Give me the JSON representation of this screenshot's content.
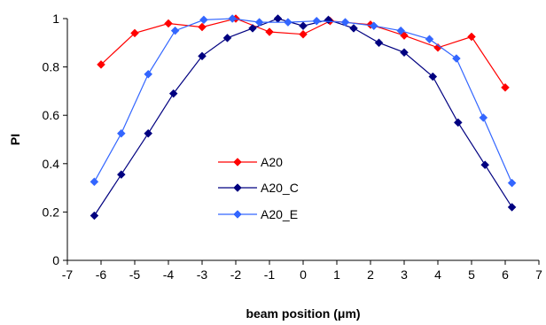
{
  "chart_data": {
    "type": "line",
    "xlabel": "beam position (μm)",
    "ylabel": "PI",
    "xlim": [
      -7,
      7
    ],
    "ylim": [
      0,
      1
    ],
    "x_ticks": [
      "-7",
      "-6",
      "-5",
      "-4",
      "-3",
      "-2",
      "-1",
      "0",
      "1",
      "2",
      "3",
      "4",
      "5",
      "6",
      "7"
    ],
    "y_ticks": [
      "0",
      "0.2",
      "0.4",
      "0.6",
      "0.8",
      "1"
    ],
    "grid": false,
    "legend_position": "center-left",
    "series": [
      {
        "name": "A20",
        "color": "#ff0000",
        "marker": "diamond",
        "points": [
          [
            -6,
            0.81
          ],
          [
            -5,
            0.94
          ],
          [
            -4,
            0.98
          ],
          [
            -3,
            0.965
          ],
          [
            -2,
            1.0
          ],
          [
            -1,
            0.945
          ],
          [
            0,
            0.935
          ],
          [
            0.8,
            0.99
          ],
          [
            2,
            0.975
          ],
          [
            3,
            0.93
          ],
          [
            4,
            0.88
          ],
          [
            5,
            0.925
          ],
          [
            6,
            0.715
          ]
        ]
      },
      {
        "name": "A20_C",
        "color": "#000080",
        "marker": "diamond",
        "points": [
          [
            -6.2,
            0.185
          ],
          [
            -5.4,
            0.355
          ],
          [
            -4.6,
            0.525
          ],
          [
            -3.85,
            0.69
          ],
          [
            -3.0,
            0.845
          ],
          [
            -2.25,
            0.92
          ],
          [
            -1.5,
            0.96
          ],
          [
            -0.75,
            1.0
          ],
          [
            0,
            0.97
          ],
          [
            0.75,
            0.995
          ],
          [
            1.5,
            0.96
          ],
          [
            2.25,
            0.9
          ],
          [
            3.0,
            0.86
          ],
          [
            3.85,
            0.76
          ],
          [
            4.6,
            0.57
          ],
          [
            5.4,
            0.395
          ],
          [
            6.2,
            0.22
          ]
        ]
      },
      {
        "name": "A20_E",
        "color": "#3366ff",
        "marker": "diamond",
        "points": [
          [
            -6.2,
            0.325
          ],
          [
            -5.4,
            0.525
          ],
          [
            -4.6,
            0.77
          ],
          [
            -3.8,
            0.95
          ],
          [
            -2.95,
            0.995
          ],
          [
            -2.1,
            1.0
          ],
          [
            -1.3,
            0.985
          ],
          [
            -0.45,
            0.985
          ],
          [
            0.4,
            0.99
          ],
          [
            1.25,
            0.985
          ],
          [
            2.1,
            0.97
          ],
          [
            2.9,
            0.95
          ],
          [
            3.75,
            0.915
          ],
          [
            4.55,
            0.835
          ],
          [
            5.35,
            0.59
          ],
          [
            6.2,
            0.32
          ]
        ]
      }
    ]
  }
}
